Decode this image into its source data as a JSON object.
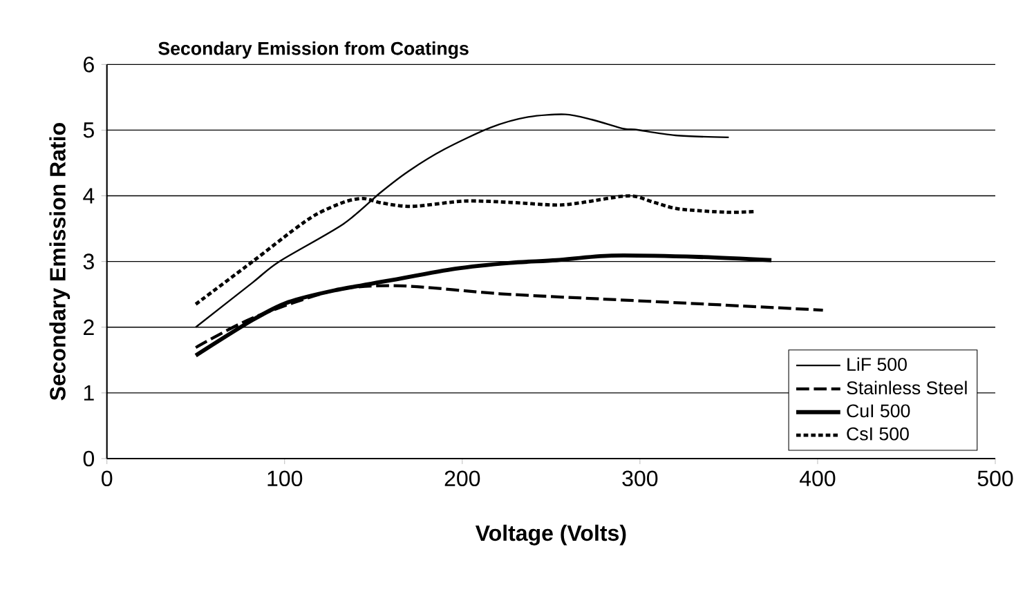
{
  "chart_data": {
    "type": "line",
    "title": "Secondary Emission from Coatings",
    "xlabel": "Voltage  (Volts)",
    "ylabel": "Secondary Emission Ratio",
    "xlim": [
      0,
      500
    ],
    "ylim": [
      0,
      6
    ],
    "xticks": [
      0,
      100,
      200,
      300,
      400,
      500
    ],
    "yticks": [
      0,
      1,
      2,
      3,
      4,
      5,
      6
    ],
    "grid": "y",
    "legend": "bottom right",
    "marker": "none",
    "series": [
      {
        "name": "LiF 500",
        "color": "#000000",
        "line_style": "solid",
        "x": [
          50,
          82,
          97,
          133,
          154,
          170,
          190,
          216,
          237,
          258,
          273,
          291,
          297,
          320,
          350
        ],
        "values": [
          2.0,
          2.68,
          3.0,
          3.57,
          4.05,
          4.38,
          4.71,
          5.04,
          5.2,
          5.24,
          5.16,
          5.02,
          5.01,
          4.92,
          4.89
        ]
      },
      {
        "name": "Stainless Steel",
        "color": "#000000",
        "line_style": "dashed",
        "x": [
          50,
          82,
          128,
          165,
          221,
          278,
          338,
          403
        ],
        "values": [
          1.69,
          2.14,
          2.56,
          2.63,
          2.51,
          2.43,
          2.35,
          2.26
        ]
      },
      {
        "name": "CuI 500",
        "color": "#000000",
        "line_style": "solid",
        "x": [
          50,
          82,
          102,
          128,
          159,
          196,
          227,
          253,
          284,
          333,
          374
        ],
        "values": [
          1.57,
          2.11,
          2.38,
          2.56,
          2.71,
          2.89,
          2.98,
          3.02,
          3.09,
          3.07,
          3.02
        ]
      },
      {
        "name": "CsI 500",
        "color": "#000000",
        "line_style": "dotted",
        "x": [
          50,
          82,
          105,
          118,
          133,
          144,
          155,
          172,
          201,
          227,
          253,
          268,
          294,
          308,
          322,
          349,
          364
        ],
        "values": [
          2.35,
          3.0,
          3.48,
          3.72,
          3.9,
          3.96,
          3.89,
          3.84,
          3.92,
          3.9,
          3.86,
          3.9,
          4.0,
          3.9,
          3.8,
          3.75,
          3.76
        ]
      }
    ]
  }
}
